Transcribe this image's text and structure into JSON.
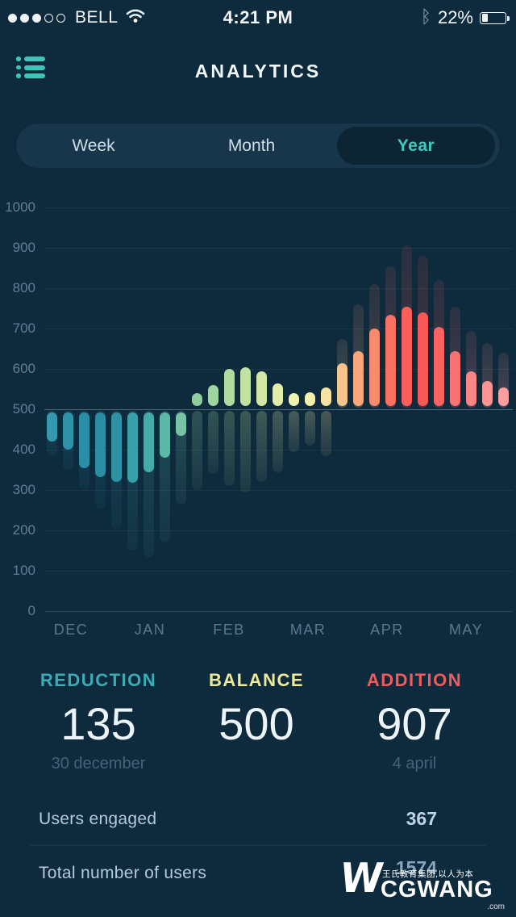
{
  "status_bar": {
    "carrier": "BELL",
    "time": "4:21 PM",
    "battery_percent": "22%",
    "signal_filled": 3,
    "signal_total": 5,
    "icons": [
      "signal-dots-icon",
      "wifi-icon",
      "bluetooth-icon",
      "battery-icon"
    ]
  },
  "header": {
    "title": "ANALYTICS",
    "menu_icon": "list-menu-icon",
    "accent_color": "#3fc4ba"
  },
  "tabs": {
    "items": [
      {
        "label": "Week",
        "active": false
      },
      {
        "label": "Month",
        "active": false
      },
      {
        "label": "Year",
        "active": true
      }
    ],
    "active_text_color": "#41c9be"
  },
  "chart_data": {
    "type": "bar",
    "subtype": "diverging-lollipop, bright main bars with muted ghost/shadow bars from a 500 baseline",
    "baseline": 500,
    "ylim": [
      0,
      1000
    ],
    "yticks": [
      1000,
      900,
      800,
      700,
      600,
      500,
      400,
      300,
      200,
      100,
      0
    ],
    "categories": [
      "DEC",
      "JAN",
      "FEB",
      "MAR",
      "APR",
      "MAY"
    ],
    "series": [
      {
        "name": "main",
        "style": "bright solid capsule"
      },
      {
        "name": "ghost",
        "style": "dark translucent capsule behind/below"
      }
    ],
    "bars": [
      {
        "main": 420,
        "ghost": 385,
        "color": "#3598ac"
      },
      {
        "main": 400,
        "ghost": 350,
        "color": "#2e93a9"
      },
      {
        "main": 355,
        "ghost": 300,
        "color": "#2a8ea6"
      },
      {
        "main": 332,
        "ghost": 255,
        "color": "#2a8da4"
      },
      {
        "main": 320,
        "ghost": 205,
        "color": "#2e92a4"
      },
      {
        "main": 318,
        "ghost": 150,
        "color": "#38a0a8"
      },
      {
        "main": 345,
        "ghost": 135,
        "color": "#46aca9"
      },
      {
        "main": 380,
        "ghost": 170,
        "color": "#5cb8a7"
      },
      {
        "main": 435,
        "ghost": 265,
        "color": "#76c4a5"
      },
      {
        "main": 540,
        "ghost": 300,
        "color": "#8ecda0"
      },
      {
        "main": 560,
        "ghost": 340,
        "color": "#9fd59e"
      },
      {
        "main": 600,
        "ghost": 310,
        "color": "#b0dc9f"
      },
      {
        "main": 605,
        "ghost": 295,
        "color": "#c2e2a2"
      },
      {
        "main": 595,
        "ghost": 320,
        "color": "#d4e8a6"
      },
      {
        "main": 565,
        "ghost": 345,
        "color": "#e4edaa"
      },
      {
        "main": 540,
        "ghost": 395,
        "color": "#eff2b1"
      },
      {
        "main": 542,
        "ghost": 410,
        "color": "#f4f0ae"
      },
      {
        "main": 555,
        "ghost": 385,
        "color": "#f6e3a2"
      },
      {
        "main": 615,
        "ghost": 675,
        "color": "#f7c48e"
      },
      {
        "main": 645,
        "ghost": 760,
        "color": "#f8a67c"
      },
      {
        "main": 700,
        "ghost": 810,
        "color": "#f88a6e"
      },
      {
        "main": 735,
        "ghost": 855,
        "color": "#f97162"
      },
      {
        "main": 755,
        "ghost": 907,
        "color": "#fa5f5a"
      },
      {
        "main": 740,
        "ghost": 880,
        "color": "#fa5757"
      },
      {
        "main": 705,
        "ghost": 820,
        "color": "#fa6161"
      },
      {
        "main": 645,
        "ghost": 755,
        "color": "#fb7272"
      },
      {
        "main": 595,
        "ghost": 695,
        "color": "#fc8585"
      },
      {
        "main": 570,
        "ghost": 665,
        "color": "#fd9494"
      },
      {
        "main": 555,
        "ghost": 640,
        "color": "#fd9e9e"
      }
    ]
  },
  "stats": {
    "items": [
      {
        "label": "REDUCTION",
        "value": "135",
        "date": "30 december",
        "color": "#3bacb6"
      },
      {
        "label": "BALANCE",
        "value": "500",
        "date": "",
        "color": "#edea9d"
      },
      {
        "label": "ADDITION",
        "value": "907",
        "date": "4 april",
        "color": "#f25b5b"
      }
    ]
  },
  "footer": {
    "rows": [
      {
        "label": "Users engaged",
        "value": "367",
        "value_color": "#bdd3e6"
      },
      {
        "label": "Total number of users",
        "value": "1574",
        "value_color": "#8aa4c0"
      }
    ]
  },
  "watermark": {
    "tagline": "王氏教育集团,以人为本",
    "brand": "CGWANG",
    "domain": ".com",
    "logo": "w-3d-logo"
  }
}
